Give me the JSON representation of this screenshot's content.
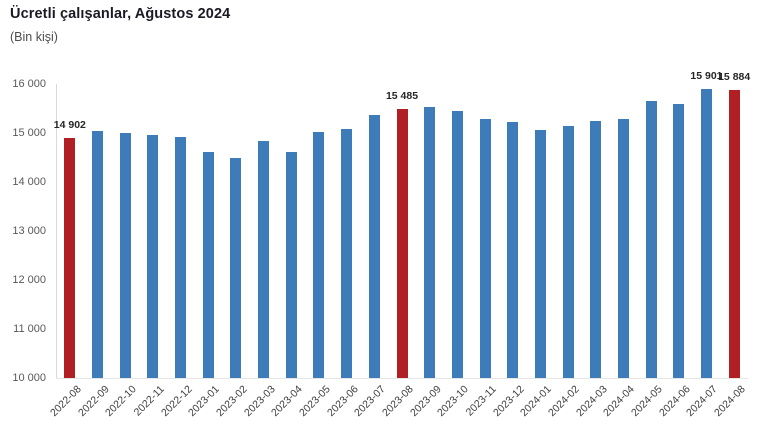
{
  "header": {
    "title": "Ücretli çalışanlar, Ağustos 2024",
    "subtitle": "(Bin kişi)"
  },
  "chart_data": {
    "type": "bar",
    "title": "Ücretli çalışanlar, Ağustos 2024",
    "subtitle": "(Bin kişi)",
    "categories": [
      "2022-08",
      "2022-09",
      "2022-10",
      "2022-11",
      "2022-12",
      "2023-01",
      "2023-02",
      "2023-03",
      "2023-04",
      "2023-05",
      "2023-06",
      "2023-07",
      "2023-08",
      "2023-09",
      "2023-10",
      "2023-11",
      "2023-12",
      "2024-01",
      "2024-02",
      "2024-03",
      "2024-04",
      "2024-05",
      "2024-06",
      "2024-07",
      "2024-08"
    ],
    "values": [
      14902,
      15035,
      15000,
      14950,
      14910,
      14610,
      14490,
      14830,
      14610,
      15020,
      15080,
      15360,
      15485,
      15540,
      15450,
      15280,
      15230,
      15070,
      15140,
      15240,
      15290,
      15660,
      15600,
      15901,
      15884
    ],
    "highlighted_categories": [
      "2022-08",
      "2023-08",
      "2024-08"
    ],
    "data_labels": {
      "2022-08": "14 902",
      "2023-08": "15 485",
      "2024-07": "15 901",
      "2024-08": "15 884"
    },
    "ylim": [
      10000,
      16000
    ],
    "ytick_labels": [
      "16 000",
      "15 000",
      "14 000",
      "13 000",
      "12 000",
      "11 000",
      "10 000"
    ],
    "grid": false,
    "legend": false,
    "colors": {
      "bar": "#3d7cb8",
      "highlight": "#b01f24",
      "axis_line": "#d9d9d9",
      "title": "#1a1a24",
      "value_label": "#262626",
      "tick_label": "#595959"
    }
  }
}
